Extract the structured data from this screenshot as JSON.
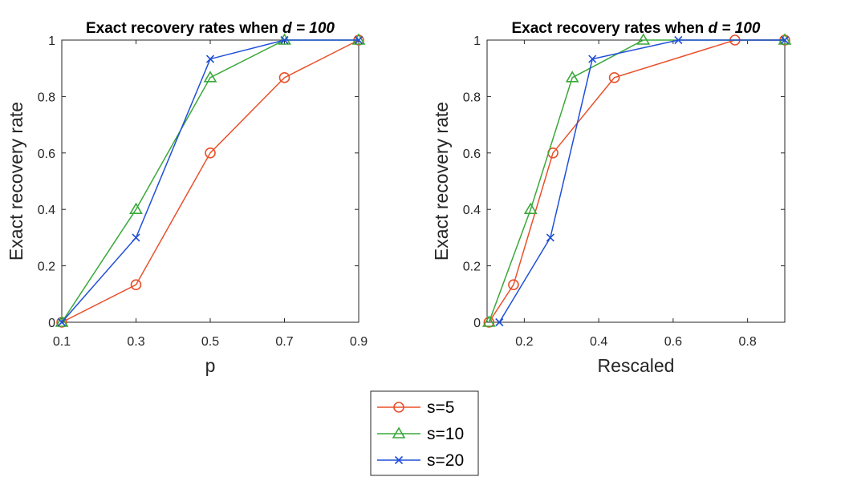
{
  "chart_data": [
    {
      "type": "line",
      "title": "Exact recovery rates when ",
      "title_var": "d = 100",
      "xlabel": "p",
      "ylabel": "Exact recovery rate",
      "xlim": [
        0.1,
        0.9
      ],
      "ylim": [
        0,
        1
      ],
      "xticks": [
        "0.1",
        "0.3",
        "0.5",
        "0.7",
        "0.9"
      ],
      "xtick_values": [
        0.1,
        0.3,
        0.5,
        0.7,
        0.9
      ],
      "yticks": [
        "0",
        "0.2",
        "0.4",
        "0.6",
        "0.8",
        "1"
      ],
      "ytick_values": [
        0,
        0.2,
        0.4,
        0.6,
        0.8,
        1
      ],
      "grid": false,
      "series": [
        {
          "name": "s=5",
          "x": [
            0.1,
            0.3,
            0.5,
            0.7,
            0.9
          ],
          "values": [
            0,
            0.133,
            0.6,
            0.867,
            1
          ]
        },
        {
          "name": "s=10",
          "x": [
            0.1,
            0.3,
            0.5,
            0.7,
            0.9
          ],
          "values": [
            0,
            0.4,
            0.867,
            1,
            1
          ]
        },
        {
          "name": "s=20",
          "x": [
            0.1,
            0.3,
            0.5,
            0.7,
            0.9
          ],
          "values": [
            0,
            0.3,
            0.933,
            1,
            1
          ]
        }
      ]
    },
    {
      "type": "line",
      "title": "Exact recovery rates when ",
      "title_var": "d = 100",
      "xlabel": "Rescaled",
      "ylabel": "Exact recovery rate",
      "xlim": [
        0.1,
        0.9
      ],
      "ylim": [
        0,
        1
      ],
      "xticks": [
        "0.2",
        "0.4",
        "0.6",
        "0.8"
      ],
      "xtick_values": [
        0.2,
        0.4,
        0.6,
        0.8
      ],
      "yticks": [
        "0",
        "0.2",
        "0.4",
        "0.6",
        "0.8",
        "1"
      ],
      "ytick_values": [
        0,
        0.2,
        0.4,
        0.6,
        0.8,
        1
      ],
      "grid": false,
      "series": [
        {
          "name": "s=5",
          "x": [
            0.105,
            0.171,
            0.277,
            0.442,
            0.766,
            0.9
          ],
          "values": [
            0,
            0.133,
            0.6,
            0.867,
            1,
            1
          ]
        },
        {
          "name": "s=10",
          "x": [
            0.105,
            0.217,
            0.329,
            0.52,
            0.9
          ],
          "values": [
            0,
            0.4,
            0.867,
            1,
            1
          ]
        },
        {
          "name": "s=20",
          "x": [
            0.133,
            0.27,
            0.383,
            0.614,
            0.9
          ],
          "values": [
            0,
            0.3,
            0.933,
            1,
            1
          ]
        }
      ]
    }
  ],
  "legend": {
    "position": "bottom-center",
    "entries": [
      "s=5",
      "s=10",
      "s=20"
    ]
  },
  "colors": {
    "s=5": "#e8502a",
    "s=10": "#3aa83a",
    "s=20": "#1f4fd8"
  },
  "markers": {
    "s=5": "circle",
    "s=10": "triangle",
    "s=20": "cross"
  }
}
